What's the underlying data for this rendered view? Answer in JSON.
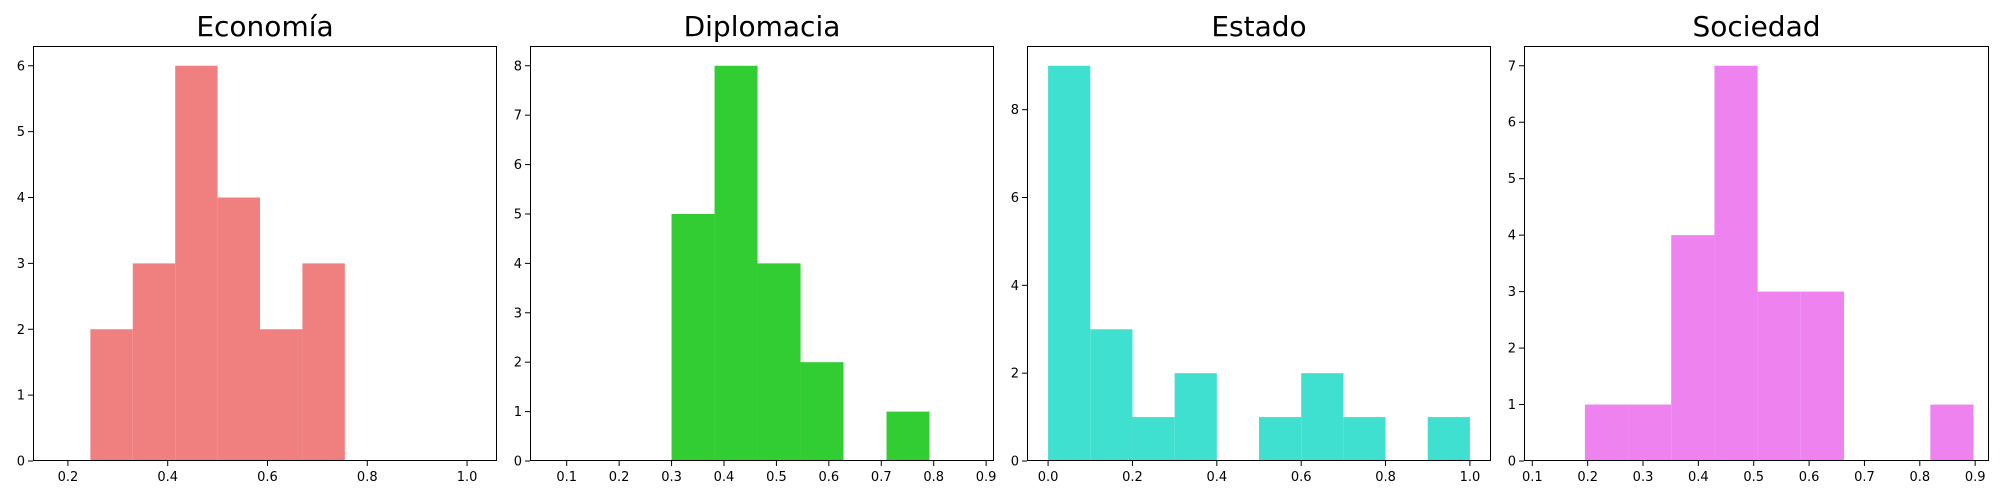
{
  "chart_data": [
    {
      "type": "bar",
      "title": "Economía",
      "color": "#f08080",
      "xlim": [
        0.13,
        1.06
      ],
      "ylim": [
        0,
        6.3
      ],
      "xticks": [
        0.2,
        0.4,
        0.6,
        0.8,
        1.0
      ],
      "xtick_labels": [
        "0.2",
        "0.4",
        "0.6",
        "0.8",
        "1.0"
      ],
      "yticks": [
        0,
        1,
        2,
        3,
        4,
        5,
        6
      ],
      "ytick_labels": [
        "0",
        "1",
        "2",
        "3",
        "4",
        "5",
        "6"
      ],
      "bins": [
        {
          "x0": 0.245,
          "x1": 0.33,
          "value": 2
        },
        {
          "x0": 0.33,
          "x1": 0.415,
          "value": 3
        },
        {
          "x0": 0.415,
          "x1": 0.5,
          "value": 6
        },
        {
          "x0": 0.5,
          "x1": 0.585,
          "value": 4
        },
        {
          "x0": 0.585,
          "x1": 0.67,
          "value": 2
        },
        {
          "x0": 0.67,
          "x1": 0.755,
          "value": 3
        }
      ]
    },
    {
      "type": "bar",
      "title": "Diplomacia",
      "color": "#32cd32",
      "xlim": [
        0.03,
        0.915
      ],
      "ylim": [
        0,
        8.4
      ],
      "xticks": [
        0.1,
        0.2,
        0.3,
        0.4,
        0.5,
        0.6,
        0.7,
        0.8,
        0.9
      ],
      "xtick_labels": [
        "0.1",
        "0.2",
        "0.3",
        "0.4",
        "0.5",
        "0.6",
        "0.7",
        "0.8",
        "0.9"
      ],
      "yticks": [
        0,
        1,
        2,
        3,
        4,
        5,
        6,
        7,
        8
      ],
      "ytick_labels": [
        "0",
        "1",
        "2",
        "3",
        "4",
        "5",
        "6",
        "7",
        "8"
      ],
      "bins": [
        {
          "x0": 0.3,
          "x1": 0.382,
          "value": 5
        },
        {
          "x0": 0.382,
          "x1": 0.464,
          "value": 8
        },
        {
          "x0": 0.464,
          "x1": 0.546,
          "value": 4
        },
        {
          "x0": 0.546,
          "x1": 0.628,
          "value": 2
        },
        {
          "x0": 0.628,
          "x1": 0.71,
          "value": 0
        },
        {
          "x0": 0.71,
          "x1": 0.792,
          "value": 1
        }
      ]
    },
    {
      "type": "bar",
      "title": "Estado",
      "color": "#40e0d0",
      "xlim": [
        -0.05,
        1.05
      ],
      "ylim": [
        0,
        9.45
      ],
      "xticks": [
        0.0,
        0.2,
        0.4,
        0.6,
        0.8,
        1.0
      ],
      "xtick_labels": [
        "0.0",
        "0.2",
        "0.4",
        "0.6",
        "0.8",
        "1.0"
      ],
      "yticks": [
        0,
        2,
        4,
        6,
        8
      ],
      "ytick_labels": [
        "0",
        "2",
        "4",
        "6",
        "8"
      ],
      "bins": [
        {
          "x0": 0.0,
          "x1": 0.1,
          "value": 9
        },
        {
          "x0": 0.1,
          "x1": 0.2,
          "value": 3
        },
        {
          "x0": 0.2,
          "x1": 0.3,
          "value": 1
        },
        {
          "x0": 0.3,
          "x1": 0.4,
          "value": 2
        },
        {
          "x0": 0.4,
          "x1": 0.5,
          "value": 0
        },
        {
          "x0": 0.5,
          "x1": 0.6,
          "value": 1
        },
        {
          "x0": 0.6,
          "x1": 0.7,
          "value": 2
        },
        {
          "x0": 0.7,
          "x1": 0.8,
          "value": 1
        },
        {
          "x0": 0.8,
          "x1": 0.9,
          "value": 0
        },
        {
          "x0": 0.9,
          "x1": 1.0,
          "value": 1
        }
      ]
    },
    {
      "type": "bar",
      "title": "Sociedad",
      "color": "#ee82ee",
      "xlim": [
        0.085,
        0.925
      ],
      "ylim": [
        0,
        7.35
      ],
      "xticks": [
        0.1,
        0.2,
        0.3,
        0.4,
        0.5,
        0.6,
        0.7,
        0.8,
        0.9
      ],
      "xtick_labels": [
        "0.1",
        "0.2",
        "0.3",
        "0.4",
        "0.5",
        "0.6",
        "0.7",
        "0.8",
        "0.9"
      ],
      "yticks": [
        0,
        1,
        2,
        3,
        4,
        5,
        6,
        7
      ],
      "ytick_labels": [
        "0",
        "1",
        "2",
        "3",
        "4",
        "5",
        "6",
        "7"
      ],
      "bins": [
        {
          "x0": 0.195,
          "x1": 0.273,
          "value": 1
        },
        {
          "x0": 0.273,
          "x1": 0.351,
          "value": 1
        },
        {
          "x0": 0.351,
          "x1": 0.429,
          "value": 4
        },
        {
          "x0": 0.429,
          "x1": 0.507,
          "value": 7
        },
        {
          "x0": 0.507,
          "x1": 0.585,
          "value": 3
        },
        {
          "x0": 0.585,
          "x1": 0.663,
          "value": 3
        },
        {
          "x0": 0.663,
          "x1": 0.741,
          "value": 0
        },
        {
          "x0": 0.741,
          "x1": 0.819,
          "value": 0
        },
        {
          "x0": 0.819,
          "x1": 0.897,
          "value": 1
        }
      ]
    }
  ]
}
